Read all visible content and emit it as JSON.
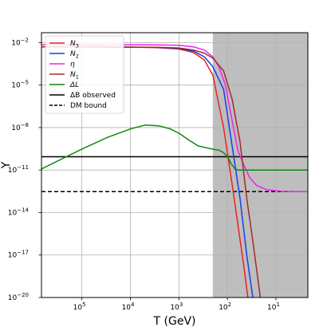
{
  "chart_data": {
    "type": "line",
    "xlabel": "T (GeV)",
    "ylabel": "Y",
    "x_scale": "log",
    "x_reversed": true,
    "y_scale": "log",
    "xlim": [
      680000,
      2.2
    ],
    "ylim": [
      1e-20,
      0.05
    ],
    "grid": true,
    "legend_position": "upper-left",
    "x_ticks": [
      {
        "value": 100000,
        "base": "10",
        "exp": "5"
      },
      {
        "value": 10000,
        "base": "10",
        "exp": "4"
      },
      {
        "value": 1000,
        "base": "10",
        "exp": "3"
      },
      {
        "value": 100,
        "base": "10",
        "exp": "2"
      },
      {
        "value": 10,
        "base": "10",
        "exp": "1"
      }
    ],
    "y_ticks": [
      {
        "value": 0.01,
        "base": "10",
        "exp": "−2"
      },
      {
        "value": 1e-05,
        "base": "10",
        "exp": "−5"
      },
      {
        "value": 1e-08,
        "base": "10",
        "exp": "−8"
      },
      {
        "value": 1e-11,
        "base": "10",
        "exp": "−11"
      },
      {
        "value": 1e-14,
        "base": "10",
        "exp": "−14"
      },
      {
        "value": 1e-17,
        "base": "10",
        "exp": "−17"
      },
      {
        "value": 1e-20,
        "base": "10",
        "exp": "−20"
      }
    ],
    "shaded_region": {
      "x_from": 200,
      "x_to": 2.2,
      "color": "#bebebe"
    },
    "hlines": [
      {
        "name": "ΔB observed",
        "y": 8.7e-11,
        "color": "#000000",
        "dash": "solid"
      },
      {
        "name": "DM bound",
        "y": 3e-13,
        "color": "#000000",
        "dash": "dashed"
      }
    ],
    "series": [
      {
        "name": "N3",
        "label_main": "N",
        "label_sub": "3",
        "color": "#e8241f",
        "x": [
          680000,
          100000,
          10000,
          3000,
          1000,
          500,
          300,
          200,
          120,
          80,
          60,
          45,
          38
        ],
        "y": [
          0.005,
          0.005,
          0.0048,
          0.0045,
          0.0035,
          0.002,
          0.0006,
          5e-05,
          1e-08,
          1e-12,
          1e-15,
          1e-18,
          1e-20
        ]
      },
      {
        "name": "N2",
        "label_main": "N",
        "label_sub": "2",
        "color": "#1a3ee8",
        "x": [
          680000,
          100000,
          10000,
          3000,
          1000,
          500,
          300,
          200,
          120,
          80,
          55,
          40,
          30
        ],
        "y": [
          0.005,
          0.005,
          0.0048,
          0.0046,
          0.0038,
          0.0025,
          0.001,
          0.0002,
          5e-06,
          5e-10,
          1e-13,
          1e-17,
          1e-20
        ]
      },
      {
        "name": "η",
        "label_main": "η",
        "label_sub": "",
        "color": "#ee22ee",
        "x": [
          680000,
          100000,
          10000,
          3000,
          1000,
          500,
          300,
          200,
          150,
          110,
          80,
          60,
          45,
          35,
          25,
          15,
          8,
          4,
          2.2
        ],
        "y": [
          0.007,
          0.007,
          0.007,
          0.0069,
          0.0065,
          0.005,
          0.003,
          0.001,
          0.0002,
          1e-05,
          3e-08,
          2e-10,
          2e-11,
          3e-12,
          8e-13,
          4e-13,
          3.2e-13,
          3e-13,
          3e-13
        ]
      },
      {
        "name": "N1",
        "label_main": "N",
        "label_sub": "1",
        "color": "#a52a2a",
        "x": [
          680000,
          100000,
          10000,
          3000,
          1000,
          500,
          300,
          200,
          120,
          80,
          55,
          40,
          30,
          21
        ],
        "y": [
          0.005,
          0.005,
          0.0048,
          0.0047,
          0.0042,
          0.003,
          0.0018,
          0.0008,
          0.0001,
          1e-06,
          1e-09,
          1e-13,
          1e-16,
          1e-20
        ]
      },
      {
        "name": "ΔL",
        "label_main": "ΔL",
        "label_sub": "",
        "color": "#118811",
        "x": [
          680000,
          100000,
          30000,
          10000,
          5000,
          2500,
          1500,
          1000,
          600,
          400,
          200,
          150,
          120,
          100,
          85,
          70,
          60,
          50,
          30,
          10,
          2.2
        ],
        "y": [
          1.2e-11,
          3e-10,
          2e-09,
          8e-09,
          1.5e-08,
          1.3e-08,
          8e-09,
          4e-09,
          1.2e-09,
          5e-10,
          3e-10,
          2.5e-10,
          1.7e-10,
          9e-11,
          3e-11,
          1.2e-11,
          1e-11,
          1e-11,
          1e-11,
          1e-11,
          1e-11
        ]
      }
    ]
  }
}
